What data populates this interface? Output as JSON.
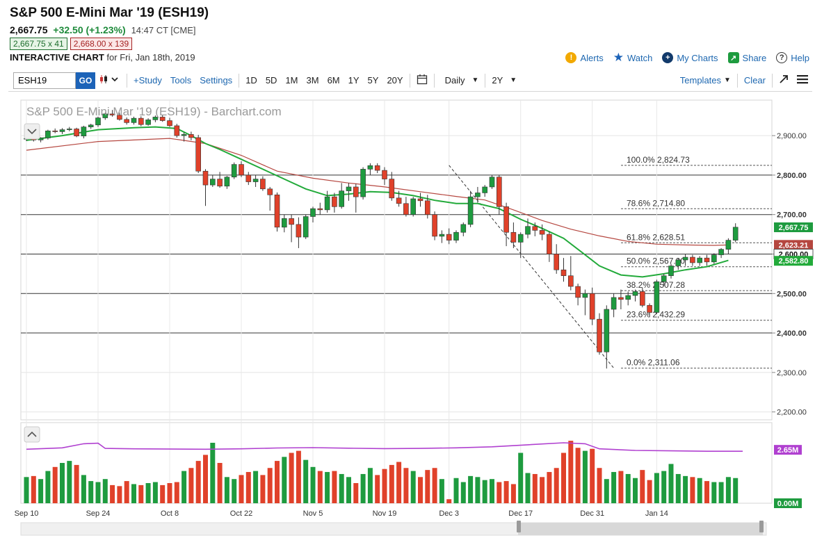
{
  "header": {
    "title": "S&P 500 E-Mini Mar '19 (ESH19)",
    "price": "2,667.75",
    "change": "+32.50 (+1.23%)",
    "time": "14:47 CT [CME]",
    "bid": "2,667.75 x 41",
    "ask": "2,668.00 x 139",
    "ic_label": "INTERACTIVE CHART",
    "ic_date": "for Fri, Jan 18th, 2019"
  },
  "actions": {
    "alerts": "Alerts",
    "watch": "Watch",
    "mycharts": "My Charts",
    "share": "Share",
    "help": "Help"
  },
  "toolbar": {
    "symbol": "ESH19",
    "go": "GO",
    "study": "+Study",
    "tools": "Tools",
    "settings": "Settings",
    "periods": [
      "1D",
      "5D",
      "1M",
      "3M",
      "6M",
      "1Y",
      "5Y",
      "20Y"
    ],
    "interval": "Daily",
    "range": "2Y",
    "templates": "Templates",
    "clear": "Clear"
  },
  "colors": {
    "up": "#1e9b3f",
    "down": "#e0412a",
    "ma_short": "#22aa3a",
    "ma_long": "#b5463f",
    "vol_avg": "#b040d0",
    "accent": "#1c63b8"
  },
  "chart_data": {
    "type": "candlestick",
    "watermark": "S&P 500 E-Mini Mar '19 (ESH19) - Barchart.com",
    "y_ticks": [
      2200,
      2300,
      2400,
      2500,
      2600,
      2700,
      2800,
      2900
    ],
    "y_tick_labels": [
      "2,200.00",
      "2,300.00",
      "2,400.00",
      "2,500.00",
      "2,600.00",
      "2,700.00",
      "2,800.00",
      "2,900.00"
    ],
    "ylim": [
      2180,
      2990
    ],
    "x_labels": [
      {
        "i": 0,
        "label": "Sep 10"
      },
      {
        "i": 10,
        "label": "Sep 24"
      },
      {
        "i": 20,
        "label": "Oct 8"
      },
      {
        "i": 30,
        "label": "Oct 22"
      },
      {
        "i": 40,
        "label": "Nov 5"
      },
      {
        "i": 50,
        "label": "Nov 19"
      },
      {
        "i": 59,
        "label": "Dec 3"
      },
      {
        "i": 69,
        "label": "Dec 17"
      },
      {
        "i": 79,
        "label": "Dec 31"
      },
      {
        "i": 88,
        "label": "Jan 14"
      }
    ],
    "candles": [
      [
        2891,
        2896,
        2886,
        2893
      ],
      [
        2893,
        2898,
        2885,
        2889
      ],
      [
        2889,
        2896,
        2883,
        2894
      ],
      [
        2894,
        2915,
        2890,
        2912
      ],
      [
        2912,
        2918,
        2906,
        2910
      ],
      [
        2910,
        2919,
        2904,
        2915
      ],
      [
        2915,
        2922,
        2911,
        2917
      ],
      [
        2917,
        2920,
        2896,
        2899
      ],
      [
        2899,
        2925,
        2893,
        2922
      ],
      [
        2922,
        2930,
        2917,
        2927
      ],
      [
        2927,
        2948,
        2922,
        2945
      ],
      [
        2945,
        2958,
        2940,
        2955
      ],
      [
        2955,
        2965,
        2948,
        2952
      ],
      [
        2952,
        2958,
        2938,
        2941
      ],
      [
        2941,
        2946,
        2928,
        2933
      ],
      [
        2933,
        2948,
        2928,
        2944
      ],
      [
        2944,
        2949,
        2924,
        2928
      ],
      [
        2928,
        2944,
        2925,
        2940
      ],
      [
        2940,
        2951,
        2934,
        2947
      ],
      [
        2947,
        2952,
        2935,
        2938
      ],
      [
        2938,
        2945,
        2922,
        2925
      ],
      [
        2925,
        2930,
        2895,
        2900
      ],
      [
        2900,
        2908,
        2885,
        2903
      ],
      [
        2903,
        2910,
        2888,
        2895
      ],
      [
        2895,
        2902,
        2805,
        2810
      ],
      [
        2810,
        2815,
        2722,
        2775
      ],
      [
        2775,
        2800,
        2770,
        2790
      ],
      [
        2790,
        2808,
        2768,
        2772
      ],
      [
        2772,
        2798,
        2765,
        2795
      ],
      [
        2795,
        2832,
        2790,
        2827
      ],
      [
        2827,
        2835,
        2795,
        2800
      ],
      [
        2800,
        2808,
        2775,
        2783
      ],
      [
        2783,
        2800,
        2770,
        2790
      ],
      [
        2790,
        2797,
        2760,
        2765
      ],
      [
        2765,
        2770,
        2710,
        2750
      ],
      [
        2750,
        2756,
        2657,
        2668
      ],
      [
        2668,
        2700,
        2655,
        2690
      ],
      [
        2690,
        2700,
        2630,
        2675
      ],
      [
        2675,
        2693,
        2615,
        2643
      ],
      [
        2643,
        2700,
        2638,
        2695
      ],
      [
        2695,
        2720,
        2680,
        2715
      ],
      [
        2715,
        2730,
        2700,
        2712
      ],
      [
        2712,
        2760,
        2705,
        2745
      ],
      [
        2745,
        2755,
        2705,
        2720
      ],
      [
        2720,
        2780,
        2715,
        2760
      ],
      [
        2760,
        2780,
        2735,
        2770
      ],
      [
        2770,
        2778,
        2705,
        2745
      ],
      [
        2745,
        2820,
        2738,
        2815
      ],
      [
        2815,
        2830,
        2800,
        2824
      ],
      [
        2824,
        2830,
        2805,
        2812
      ],
      [
        2812,
        2820,
        2775,
        2790
      ],
      [
        2790,
        2808,
        2735,
        2742
      ],
      [
        2742,
        2760,
        2720,
        2728
      ],
      [
        2728,
        2745,
        2695,
        2700
      ],
      [
        2700,
        2745,
        2695,
        2740
      ],
      [
        2740,
        2755,
        2720,
        2735
      ],
      [
        2735,
        2750,
        2690,
        2700
      ],
      [
        2700,
        2708,
        2635,
        2645
      ],
      [
        2645,
        2660,
        2628,
        2650
      ],
      [
        2650,
        2665,
        2625,
        2635
      ],
      [
        2635,
        2660,
        2628,
        2655
      ],
      [
        2655,
        2680,
        2645,
        2675
      ],
      [
        2675,
        2760,
        2668,
        2745
      ],
      [
        2745,
        2770,
        2730,
        2755
      ],
      [
        2755,
        2775,
        2745,
        2770
      ],
      [
        2770,
        2800,
        2765,
        2795
      ],
      [
        2795,
        2800,
        2700,
        2720
      ],
      [
        2720,
        2730,
        2620,
        2655
      ],
      [
        2655,
        2680,
        2615,
        2630
      ],
      [
        2630,
        2655,
        2590,
        2650
      ],
      [
        2650,
        2690,
        2640,
        2670
      ],
      [
        2670,
        2680,
        2645,
        2660
      ],
      [
        2660,
        2675,
        2635,
        2650
      ],
      [
        2650,
        2658,
        2580,
        2600
      ],
      [
        2600,
        2625,
        2550,
        2560
      ],
      [
        2560,
        2590,
        2530,
        2545
      ],
      [
        2545,
        2595,
        2508,
        2518
      ],
      [
        2518,
        2525,
        2470,
        2490
      ],
      [
        2490,
        2510,
        2445,
        2500
      ],
      [
        2500,
        2515,
        2420,
        2435
      ],
      [
        2435,
        2450,
        2345,
        2352
      ],
      [
        2352,
        2470,
        2310,
        2460
      ],
      [
        2460,
        2500,
        2440,
        2490
      ],
      [
        2490,
        2510,
        2460,
        2485
      ],
      [
        2485,
        2505,
        2470,
        2495
      ],
      [
        2495,
        2510,
        2480,
        2505
      ],
      [
        2505,
        2515,
        2465,
        2470
      ],
      [
        2470,
        2475,
        2440,
        2452
      ],
      [
        2452,
        2535,
        2448,
        2530
      ],
      [
        2530,
        2550,
        2520,
        2545
      ],
      [
        2545,
        2575,
        2538,
        2570
      ],
      [
        2570,
        2590,
        2560,
        2585
      ],
      [
        2585,
        2600,
        2570,
        2592
      ],
      [
        2592,
        2598,
        2570,
        2578
      ],
      [
        2578,
        2595,
        2570,
        2590
      ],
      [
        2590,
        2598,
        2570,
        2580
      ],
      [
        2580,
        2602,
        2575,
        2598
      ],
      [
        2598,
        2615,
        2590,
        2612
      ],
      [
        2612,
        2640,
        2600,
        2635
      ],
      [
        2635,
        2678,
        2630,
        2668
      ]
    ],
    "ma_short": [
      [
        0,
        2888
      ],
      [
        5,
        2900
      ],
      [
        10,
        2915
      ],
      [
        15,
        2920
      ],
      [
        18,
        2922
      ],
      [
        21,
        2918
      ],
      [
        23,
        2900
      ],
      [
        25,
        2880
      ],
      [
        27,
        2865
      ],
      [
        30,
        2840
      ],
      [
        33,
        2815
      ],
      [
        36,
        2790
      ],
      [
        39,
        2765
      ],
      [
        42,
        2748
      ],
      [
        45,
        2752
      ],
      [
        48,
        2758
      ],
      [
        51,
        2756
      ],
      [
        54,
        2748
      ],
      [
        57,
        2736
      ],
      [
        60,
        2728
      ],
      [
        63,
        2728
      ],
      [
        66,
        2715
      ],
      [
        69,
        2688
      ],
      [
        72,
        2665
      ],
      [
        75,
        2640
      ],
      [
        78,
        2598
      ],
      [
        80,
        2570
      ],
      [
        83,
        2547
      ],
      [
        86,
        2542
      ],
      [
        89,
        2550
      ],
      [
        92,
        2560
      ],
      [
        95,
        2568
      ],
      [
        98,
        2584
      ]
    ],
    "ma_long": [
      [
        0,
        2863
      ],
      [
        10,
        2885
      ],
      [
        20,
        2893
      ],
      [
        25,
        2880
      ],
      [
        30,
        2850
      ],
      [
        35,
        2810
      ],
      [
        40,
        2792
      ],
      [
        45,
        2780
      ],
      [
        50,
        2770
      ],
      [
        55,
        2758
      ],
      [
        60,
        2746
      ],
      [
        64,
        2737
      ],
      [
        68,
        2712
      ],
      [
        72,
        2685
      ],
      [
        76,
        2663
      ],
      [
        80,
        2646
      ],
      [
        84,
        2632
      ],
      [
        88,
        2625
      ],
      [
        92,
        2623
      ],
      [
        96,
        2622
      ],
      [
        98,
        2623
      ]
    ],
    "fib_line": [
      [
        59,
        2824.73
      ],
      [
        82,
        2311.06
      ]
    ],
    "fib_levels": [
      {
        "label": "100.0% 2,824.73",
        "value": 2824.73
      },
      {
        "label": "78.6% 2,714.80",
        "value": 2714.8
      },
      {
        "label": "61.8% 2,628.51",
        "value": 2628.51
      },
      {
        "label": "50.0% 2,567.90",
        "value": 2567.9
      },
      {
        "label": "38.2% 2,507.28",
        "value": 2507.28
      },
      {
        "label": "23.6% 2,432.29",
        "value": 2432.29
      },
      {
        "label": "0.0% 2,311.06",
        "value": 2311.06
      }
    ],
    "price_badges": [
      {
        "label": "2,667.75",
        "value": 2667.75,
        "color": "#1e9b3f"
      },
      {
        "label": "2,623.21",
        "value": 2623.21,
        "color": "#b5463f"
      },
      {
        "label": "2,600.00",
        "value": 2600.0,
        "color": "#ffffff"
      },
      {
        "label": "2,582.80",
        "value": 2582.8,
        "color": "#22aa3a"
      }
    ],
    "volume_ylim": [
      0,
      4.0
    ],
    "volume_ticks": [
      {
        "label": "2.65M",
        "value": 2.65,
        "color": "#b040d0"
      },
      {
        "label": "0.00M",
        "value": 0.0,
        "color": "#1e9b3f"
      }
    ],
    "volume": [
      1.3,
      1.35,
      1.2,
      1.6,
      1.8,
      2.0,
      2.1,
      1.9,
      1.4,
      1.1,
      1.05,
      1.2,
      0.9,
      0.85,
      1.1,
      0.95,
      0.9,
      1.0,
      1.05,
      0.9,
      1.0,
      1.05,
      1.6,
      1.75,
      2.1,
      2.4,
      3.0,
      2.0,
      1.3,
      1.2,
      1.4,
      1.55,
      1.6,
      1.4,
      1.75,
      2.1,
      2.3,
      2.5,
      2.6,
      2.15,
      1.8,
      1.6,
      1.55,
      1.6,
      1.45,
      1.3,
      1.0,
      1.45,
      1.75,
      1.4,
      1.7,
      1.9,
      2.05,
      1.75,
      1.6,
      1.3,
      1.65,
      1.75,
      1.2,
      0.2,
      1.25,
      1.05,
      1.35,
      1.3,
      1.15,
      1.2,
      1.05,
      1.1,
      0.95,
      2.5,
      1.5,
      1.45,
      1.3,
      1.55,
      1.75,
      2.5,
      3.1,
      2.75,
      2.6,
      2.7,
      1.75,
      1.2,
      1.55,
      1.6,
      1.45,
      1.25,
      1.65,
      1.15,
      1.5,
      1.6,
      1.95,
      1.45,
      1.35,
      1.3,
      1.25,
      1.1,
      1.05,
      1.05,
      1.3,
      1.25
    ],
    "volume_avg": [
      [
        0,
        2.68
      ],
      [
        5,
        2.75
      ],
      [
        8,
        2.95
      ],
      [
        10,
        2.98
      ],
      [
        11,
        2.72
      ],
      [
        15,
        2.7
      ],
      [
        25,
        2.68
      ],
      [
        30,
        2.7
      ],
      [
        35,
        2.74
      ],
      [
        40,
        2.76
      ],
      [
        45,
        2.73
      ],
      [
        50,
        2.71
      ],
      [
        55,
        2.72
      ],
      [
        60,
        2.75
      ],
      [
        65,
        2.8
      ],
      [
        70,
        2.9
      ],
      [
        75,
        3.0
      ],
      [
        78,
        2.95
      ],
      [
        80,
        2.7
      ],
      [
        85,
        2.62
      ],
      [
        90,
        2.6
      ],
      [
        95,
        2.58
      ],
      [
        100,
        2.58
      ]
    ]
  }
}
